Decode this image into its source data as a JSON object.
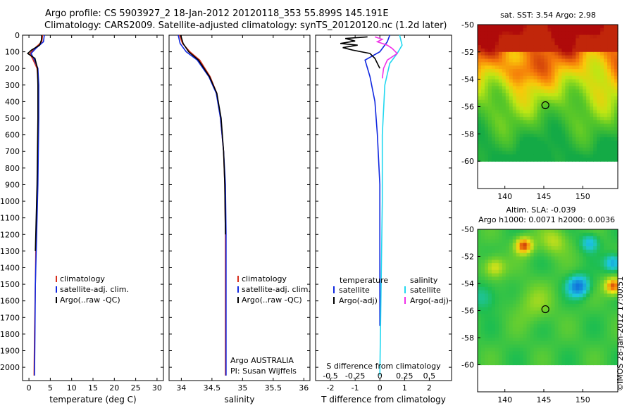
{
  "titles": {
    "line1": "Argo profile: CS 5903927_2 18-Jan-2012 20120118_353 55.899S 145.191E",
    "line2": "Climatology: CARS2009. Satellite-adjusted climatology: synTS_20120120.nc (1.2d later)"
  },
  "credit": "©IMOS 28-Jan-2012 17:00:51",
  "colors": {
    "climatology": "#d62e1c",
    "satellite": "#1028e0",
    "argo": "#000000",
    "satellite_s": "#22d8f0",
    "argo_s": "#f030e8"
  },
  "chart_data": [
    {
      "type": "line",
      "panel": "temperature",
      "xlabel": "temperature (deg C)",
      "xlim": [
        -1.5,
        31.5
      ],
      "xticks": [
        0,
        5,
        10,
        15,
        20,
        25,
        30
      ],
      "ylim": [
        0,
        2080
      ],
      "yticks": [
        0,
        100,
        200,
        300,
        400,
        500,
        600,
        700,
        800,
        900,
        1000,
        1100,
        1200,
        1300,
        1400,
        1500,
        1600,
        1700,
        1800,
        1900,
        2000
      ],
      "y_reversed": true,
      "legend": [
        "climatology",
        "satellite-adj. clim.",
        "Argo(..raw -QC)"
      ],
      "series": [
        {
          "name": "climatology",
          "color_key": "climatology",
          "x": [
            3.2,
            3.0,
            1.3,
            0.2,
            1.0,
            1.9,
            2.2,
            2.2,
            2.1,
            2.0,
            1.8,
            1.6,
            1.5,
            1.3,
            1.2
          ],
          "y": [
            0,
            40,
            80,
            110,
            150,
            200,
            300,
            500,
            700,
            900,
            1100,
            1300,
            1500,
            1800,
            2050
          ]
        },
        {
          "name": "satellite-adj. clim.",
          "color_key": "satellite",
          "x": [
            3.6,
            3.4,
            1.6,
            0.5,
            1.3,
            2.1,
            2.3,
            2.3,
            2.2,
            2.1,
            1.9,
            1.7,
            1.5,
            1.4,
            1.3
          ],
          "y": [
            0,
            40,
            80,
            110,
            150,
            200,
            300,
            500,
            700,
            900,
            1100,
            1300,
            1500,
            1800,
            2050
          ]
        },
        {
          "name": "Argo(..raw -QC)",
          "color_key": "argo",
          "x": [
            3.0,
            2.9,
            2.5,
            0.6,
            -0.3,
            1.4,
            2.0,
            2.1,
            2.1,
            2.0,
            1.9,
            1.7,
            1.5
          ],
          "y": [
            0,
            30,
            60,
            90,
            110,
            140,
            200,
            300,
            500,
            700,
            900,
            1100,
            1300
          ]
        }
      ]
    },
    {
      "type": "line",
      "panel": "salinity",
      "xlabel": "salinity",
      "xlim": [
        33.8,
        36.1
      ],
      "xticks": [
        34,
        34.5,
        35,
        35.5,
        36
      ],
      "xticklabels": [
        "34",
        "34.5",
        "35",
        "35.5",
        "36"
      ],
      "ylim": [
        0,
        2080
      ],
      "y_reversed": true,
      "legend": [
        "climatology",
        "satellite-adj. clim.",
        "Argo(..raw -QC)"
      ],
      "annotation": [
        "Argo AUSTRALIA",
        "PI: Susan Wijffels"
      ],
      "series": [
        {
          "name": "climatology",
          "color_key": "climatology",
          "x": [
            33.97,
            34.02,
            34.14,
            34.3,
            34.47,
            34.58,
            34.64,
            34.69,
            34.71,
            34.72,
            34.72
          ],
          "y": [
            0,
            50,
            100,
            150,
            250,
            350,
            500,
            700,
            900,
            1200,
            2050
          ]
        },
        {
          "name": "satellite-adj. clim.",
          "color_key": "satellite",
          "x": [
            33.95,
            33.98,
            34.08,
            34.26,
            34.45,
            34.57,
            34.64,
            34.69,
            34.72,
            34.73,
            34.73
          ],
          "y": [
            0,
            50,
            100,
            150,
            250,
            350,
            500,
            700,
            900,
            1200,
            2050
          ]
        },
        {
          "name": "Argo(..raw -QC)",
          "color_key": "argo",
          "x": [
            33.99,
            34.03,
            34.12,
            34.28,
            34.46,
            34.58,
            34.65,
            34.69,
            34.71,
            34.72
          ],
          "y": [
            0,
            50,
            100,
            150,
            250,
            350,
            500,
            700,
            900,
            1200
          ]
        }
      ]
    },
    {
      "type": "line",
      "panel": "difference",
      "xlabel": "T difference from climatology",
      "xlim": [
        -2.6,
        2.9
      ],
      "xticks": [
        -2,
        -1,
        0,
        1,
        2
      ],
      "top_axis_label": "S difference from climatology",
      "top_ticks": [
        "-0.5",
        "-0.25",
        "0",
        "0.25",
        "0.5"
      ],
      "ylim": [
        0,
        2080
      ],
      "y_reversed": true,
      "legend_left_title": "temperature",
      "legend_right_title": "salinity",
      "legend": [
        "satellite",
        "Argo(-adj)",
        "satellite",
        "Argo(-adj)"
      ],
      "series": [
        {
          "name": "satellite",
          "color_key": "satellite",
          "x": [
            0.4,
            0.3,
            0.0,
            -0.6,
            -0.4,
            -0.2,
            -0.1,
            0.0,
            0.0,
            0.0
          ],
          "y": [
            0,
            40,
            100,
            150,
            250,
            400,
            600,
            900,
            1300,
            1750
          ]
        },
        {
          "name": "Argo(-adj)",
          "color_key": "argo",
          "x": [
            -0.5,
            -1.4,
            -1.0,
            -1.6,
            -0.9,
            -1.5,
            -1.1,
            -0.4,
            -0.2,
            -0.1,
            0.0
          ],
          "y": [
            10,
            20,
            35,
            50,
            60,
            75,
            90,
            110,
            140,
            170,
            200
          ]
        },
        {
          "name": "satellite",
          "color_key": "satellite_s",
          "x": [
            0.8,
            0.9,
            0.7,
            0.4,
            0.2,
            0.1,
            0.1,
            0.0
          ],
          "y": [
            0,
            60,
            110,
            170,
            300,
            600,
            1000,
            2050
          ]
        },
        {
          "name": "Argo(-adj)",
          "color_key": "argo_s",
          "x": [
            -0.2,
            0.1,
            -0.1,
            0.3,
            0.5,
            0.7,
            0.3,
            0.15,
            0.1
          ],
          "y": [
            10,
            25,
            40,
            60,
            80,
            110,
            150,
            200,
            260
          ]
        }
      ]
    },
    {
      "type": "heatmap",
      "panel": "sst-map",
      "title": "sat. SST: 3.54  Argo: 2.98",
      "xticks": [
        140,
        145,
        150
      ],
      "yticks": [
        "-50",
        "-52",
        "-54",
        "-56",
        "-58",
        "-60"
      ],
      "xlim": [
        136.5,
        154.5
      ],
      "ylim": [
        -62,
        -50
      ],
      "marker": {
        "lon": 145.2,
        "lat": -55.9
      }
    },
    {
      "type": "heatmap",
      "panel": "sla-map",
      "title": "Altim. SLA: -0.039",
      "subtitle": "Argo h1000: 0.0071 h2000: 0.0036",
      "xticks": [
        140,
        145,
        150
      ],
      "yticks": [
        "-50",
        "-52",
        "-54",
        "-56",
        "-58",
        "-60"
      ],
      "xlim": [
        136.5,
        154.5
      ],
      "ylim": [
        -62,
        -50
      ],
      "marker": {
        "lon": 145.2,
        "lat": -55.9
      }
    }
  ]
}
